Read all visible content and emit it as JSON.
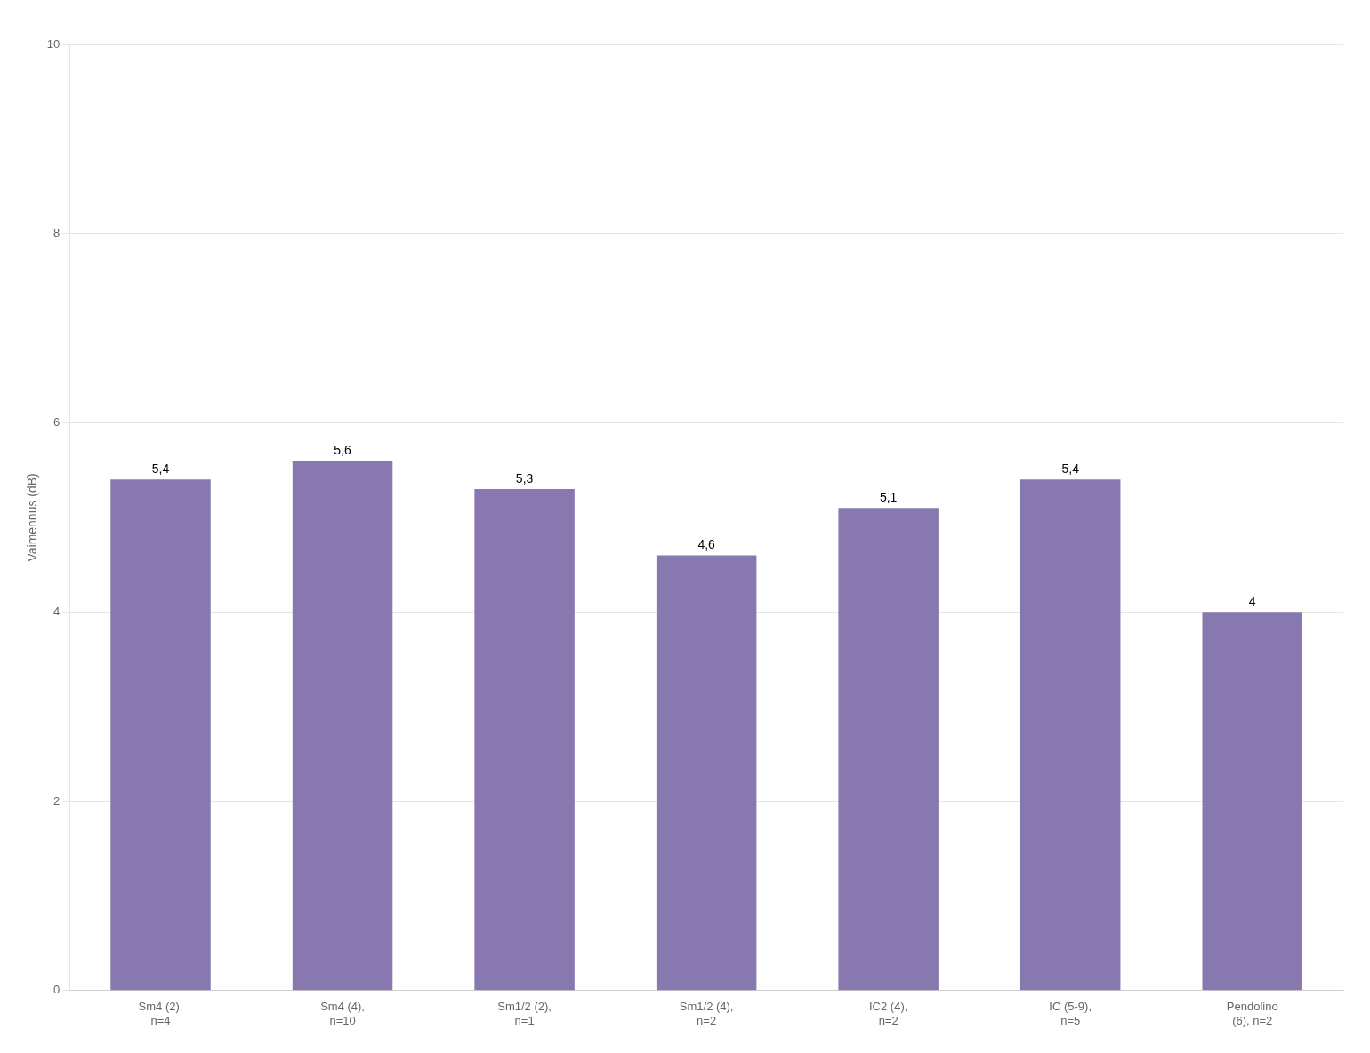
{
  "chart_data": {
    "type": "bar",
    "categories": [
      "Sm4 (2),\nn=4",
      "Sm4 (4),\nn=10",
      "Sm1/2 (2),\nn=1",
      "Sm1/2 (4),\nn=2",
      "IC2 (4),\nn=2",
      "IC (5-9),\nn=5",
      "Pendolino\n(6), n=2"
    ],
    "values": [
      5.4,
      5.6,
      5.3,
      4.6,
      5.1,
      5.4,
      4.0
    ],
    "value_labels": [
      "5,4",
      "5,6",
      "5,3",
      "4,6",
      "5,1",
      "5,4",
      "4"
    ],
    "data_labels": true,
    "color": "#8878b0",
    "ylabel": "Vaimennus (dB)",
    "ylim": [
      0,
      10
    ],
    "yticks": [
      0,
      2,
      4,
      6,
      8,
      10
    ],
    "grid": true
  }
}
